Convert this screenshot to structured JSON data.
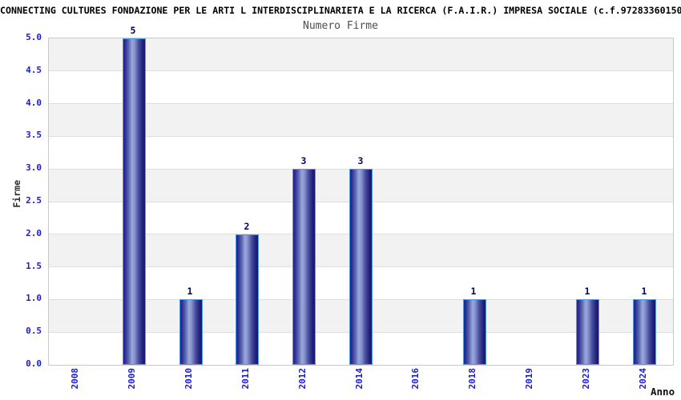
{
  "header": {
    "title": "CONNECTING CULTURES FONDAZIONE PER LE ARTI L INTERDISCIPLINARIETA E LA RICERCA (F.A.I.R.) IMPRESA SOCIALE (c.f.97283360150"
  },
  "chart_data": {
    "type": "bar",
    "title": "Numero Firme",
    "xlabel": "Anno",
    "ylabel": "Firme",
    "categories": [
      "2008",
      "2009",
      "2010",
      "2011",
      "2012",
      "2014",
      "2016",
      "2018",
      "2019",
      "2023",
      "2024"
    ],
    "values": [
      0,
      5,
      1,
      2,
      3,
      3,
      0,
      1,
      0,
      1,
      1
    ],
    "ylim": [
      0,
      5
    ],
    "ytick_step": 0.5,
    "y_tick_labels": [
      "5.0",
      "4.5",
      "4.0",
      "3.5",
      "3.0",
      "2.5",
      "2.0",
      "1.5",
      "1.0",
      "0.5",
      "0.0"
    ],
    "grid": "horizontal-bands-alternating",
    "legend": "none",
    "colors": {
      "tick_label": "#1a1acf",
      "value_label": "#00006e",
      "bar_edge_dark": "#181870",
      "bar_center_light": "#9aa7db",
      "bar_border": "#4d9ce5",
      "band_gray": "#f2f2f2",
      "band_white": "#ffffff",
      "plot_border": "#c9c9c9",
      "subtitle_gray": "#4d4d4d"
    }
  }
}
